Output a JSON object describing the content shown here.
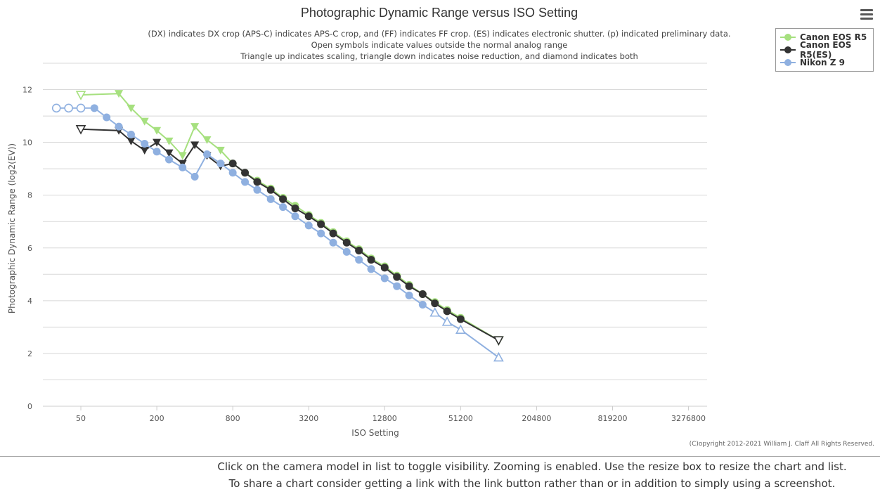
{
  "chart_data": {
    "type": "line",
    "title": "Photographic Dynamic Range versus ISO Setting",
    "subtitle": [
      "(DX) indicates DX crop (APS-C) indicates APS-C crop, and (FF) indicates FF crop. (ES) indicates electronic shutter. (p) indicated preliminary data.",
      "Open symbols indicate values outside the normal analog range",
      "Triangle up indicates scaling, triangle down indicates noise reduction, and diamond indicates both"
    ],
    "xlabel": "ISO Setting",
    "ylabel": "Photographic Dynamic Range (log2(EV))",
    "x_scale": "log2",
    "x_ticks": [
      50,
      200,
      800,
      3200,
      12800,
      51200,
      204800,
      819200,
      3276800
    ],
    "x_tick_labels": [
      "50",
      "200",
      "800",
      "3200",
      "12800",
      "51200",
      "204800",
      "819200",
      "3276800"
    ],
    "xlim": [
      25,
      4600000
    ],
    "ylim": [
      0,
      13
    ],
    "y_ticks": [
      0,
      2,
      4,
      6,
      8,
      10,
      12
    ],
    "grid": true,
    "legend_position": "top-right",
    "series": [
      {
        "name": "Canon EOS R5",
        "color": "#a6e07f",
        "points": [
          {
            "x": 50,
            "y": 11.8,
            "m": "tri-down-open"
          },
          {
            "x": 100,
            "y": 11.85,
            "m": "tri-down"
          },
          {
            "x": 125,
            "y": 11.3,
            "m": "tri-down"
          },
          {
            "x": 160,
            "y": 10.8,
            "m": "tri-down"
          },
          {
            "x": 200,
            "y": 10.45,
            "m": "tri-down"
          },
          {
            "x": 250,
            "y": 10.05,
            "m": "tri-down"
          },
          {
            "x": 320,
            "y": 9.5,
            "m": "tri-down"
          },
          {
            "x": 400,
            "y": 10.6,
            "m": "tri-down"
          },
          {
            "x": 500,
            "y": 10.1,
            "m": "tri-down"
          },
          {
            "x": 640,
            "y": 9.7,
            "m": "tri-down"
          },
          {
            "x": 800,
            "y": 9.2,
            "m": "circle"
          },
          {
            "x": 1000,
            "y": 8.85,
            "m": "circle"
          },
          {
            "x": 1250,
            "y": 8.55,
            "m": "circle"
          },
          {
            "x": 1600,
            "y": 8.25,
            "m": "circle"
          },
          {
            "x": 2000,
            "y": 7.9,
            "m": "circle"
          },
          {
            "x": 2500,
            "y": 7.6,
            "m": "circle"
          },
          {
            "x": 3200,
            "y": 7.25,
            "m": "circle"
          },
          {
            "x": 4000,
            "y": 6.95,
            "m": "circle"
          },
          {
            "x": 5000,
            "y": 6.6,
            "m": "circle"
          },
          {
            "x": 6400,
            "y": 6.25,
            "m": "circle"
          },
          {
            "x": 8000,
            "y": 5.95,
            "m": "circle"
          },
          {
            "x": 10000,
            "y": 5.6,
            "m": "circle"
          },
          {
            "x": 12800,
            "y": 5.3,
            "m": "circle"
          },
          {
            "x": 16000,
            "y": 4.95,
            "m": "circle"
          },
          {
            "x": 20000,
            "y": 4.6,
            "m": "circle"
          },
          {
            "x": 25600,
            "y": 4.25,
            "m": "circle"
          },
          {
            "x": 32000,
            "y": 3.95,
            "m": "circle"
          },
          {
            "x": 40000,
            "y": 3.65,
            "m": "circle"
          },
          {
            "x": 51200,
            "y": 3.35,
            "m": "circle"
          },
          {
            "x": 102400,
            "y": 2.5,
            "m": "tri-down-open"
          }
        ]
      },
      {
        "name": "Canon EOS R5(ES)",
        "color": "#333333",
        "points": [
          {
            "x": 50,
            "y": 10.5,
            "m": "tri-down-open"
          },
          {
            "x": 100,
            "y": 10.45,
            "m": "tri-down"
          },
          {
            "x": 125,
            "y": 10.05,
            "m": "tri-down"
          },
          {
            "x": 160,
            "y": 9.7,
            "m": "tri-down"
          },
          {
            "x": 200,
            "y": 10.0,
            "m": "tri-down"
          },
          {
            "x": 250,
            "y": 9.6,
            "m": "tri-down"
          },
          {
            "x": 320,
            "y": 9.2,
            "m": "tri-down"
          },
          {
            "x": 400,
            "y": 9.9,
            "m": "tri-down"
          },
          {
            "x": 500,
            "y": 9.5,
            "m": "tri-down"
          },
          {
            "x": 640,
            "y": 9.1,
            "m": "tri-down"
          },
          {
            "x": 800,
            "y": 9.2,
            "m": "circle"
          },
          {
            "x": 1000,
            "y": 8.85,
            "m": "circle"
          },
          {
            "x": 1250,
            "y": 8.5,
            "m": "circle"
          },
          {
            "x": 1600,
            "y": 8.2,
            "m": "circle"
          },
          {
            "x": 2000,
            "y": 7.85,
            "m": "circle"
          },
          {
            "x": 2500,
            "y": 7.5,
            "m": "circle"
          },
          {
            "x": 3200,
            "y": 7.2,
            "m": "circle"
          },
          {
            "x": 4000,
            "y": 6.9,
            "m": "circle"
          },
          {
            "x": 5000,
            "y": 6.55,
            "m": "circle"
          },
          {
            "x": 6400,
            "y": 6.2,
            "m": "circle"
          },
          {
            "x": 8000,
            "y": 5.9,
            "m": "circle"
          },
          {
            "x": 10000,
            "y": 5.55,
            "m": "circle"
          },
          {
            "x": 12800,
            "y": 5.25,
            "m": "circle"
          },
          {
            "x": 16000,
            "y": 4.9,
            "m": "circle"
          },
          {
            "x": 20000,
            "y": 4.55,
            "m": "circle"
          },
          {
            "x": 25600,
            "y": 4.25,
            "m": "circle"
          },
          {
            "x": 32000,
            "y": 3.9,
            "m": "circle"
          },
          {
            "x": 40000,
            "y": 3.6,
            "m": "circle"
          },
          {
            "x": 51200,
            "y": 3.3,
            "m": "circle"
          },
          {
            "x": 102400,
            "y": 2.5,
            "m": "tri-down-open"
          }
        ]
      },
      {
        "name": "Nikon Z 9",
        "color": "#8fb0e0",
        "points": [
          {
            "x": 32,
            "y": 11.3,
            "m": "circle-open"
          },
          {
            "x": 40,
            "y": 11.3,
            "m": "circle-open"
          },
          {
            "x": 50,
            "y": 11.3,
            "m": "circle-open"
          },
          {
            "x": 64,
            "y": 11.3,
            "m": "circle"
          },
          {
            "x": 80,
            "y": 10.95,
            "m": "circle"
          },
          {
            "x": 100,
            "y": 10.6,
            "m": "circle"
          },
          {
            "x": 125,
            "y": 10.3,
            "m": "circle"
          },
          {
            "x": 160,
            "y": 9.95,
            "m": "circle"
          },
          {
            "x": 200,
            "y": 9.65,
            "m": "circle"
          },
          {
            "x": 250,
            "y": 9.35,
            "m": "circle"
          },
          {
            "x": 320,
            "y": 9.05,
            "m": "circle"
          },
          {
            "x": 400,
            "y": 8.7,
            "m": "circle"
          },
          {
            "x": 500,
            "y": 9.55,
            "m": "circle"
          },
          {
            "x": 640,
            "y": 9.2,
            "m": "circle"
          },
          {
            "x": 800,
            "y": 8.85,
            "m": "circle"
          },
          {
            "x": 1000,
            "y": 8.5,
            "m": "circle"
          },
          {
            "x": 1250,
            "y": 8.2,
            "m": "circle"
          },
          {
            "x": 1600,
            "y": 7.85,
            "m": "circle"
          },
          {
            "x": 2000,
            "y": 7.55,
            "m": "circle"
          },
          {
            "x": 2500,
            "y": 7.2,
            "m": "circle"
          },
          {
            "x": 3200,
            "y": 6.85,
            "m": "circle"
          },
          {
            "x": 4000,
            "y": 6.55,
            "m": "circle"
          },
          {
            "x": 5000,
            "y": 6.2,
            "m": "circle"
          },
          {
            "x": 6400,
            "y": 5.85,
            "m": "circle"
          },
          {
            "x": 8000,
            "y": 5.55,
            "m": "circle"
          },
          {
            "x": 10000,
            "y": 5.2,
            "m": "circle"
          },
          {
            "x": 12800,
            "y": 4.85,
            "m": "circle"
          },
          {
            "x": 16000,
            "y": 4.55,
            "m": "circle"
          },
          {
            "x": 20000,
            "y": 4.2,
            "m": "circle"
          },
          {
            "x": 25600,
            "y": 3.85,
            "m": "circle"
          },
          {
            "x": 32000,
            "y": 3.55,
            "m": "tri-up-open"
          },
          {
            "x": 40000,
            "y": 3.2,
            "m": "tri-up-open"
          },
          {
            "x": 51200,
            "y": 2.9,
            "m": "tri-up-open"
          },
          {
            "x": 102400,
            "y": 1.85,
            "m": "tri-up-open"
          }
        ]
      }
    ]
  },
  "legend": {
    "items": [
      {
        "label": "Canon EOS R5",
        "color": "#a6e07f"
      },
      {
        "label": "Canon EOS R5(ES)",
        "color": "#333333"
      },
      {
        "label": "Nikon Z 9",
        "color": "#8fb0e0"
      }
    ]
  },
  "menu_icon": "hamburger-icon",
  "copyright": "(C)opyright 2012-2021 William J. Claff All Rights Reserved.",
  "footer": {
    "line1": "Click on the camera model in list to toggle visibility. Zooming is enabled. Use the resize box to resize the chart and list.",
    "line2": "To share a chart consider getting a link with the link button rather than or in addition to simply using a screenshot."
  }
}
